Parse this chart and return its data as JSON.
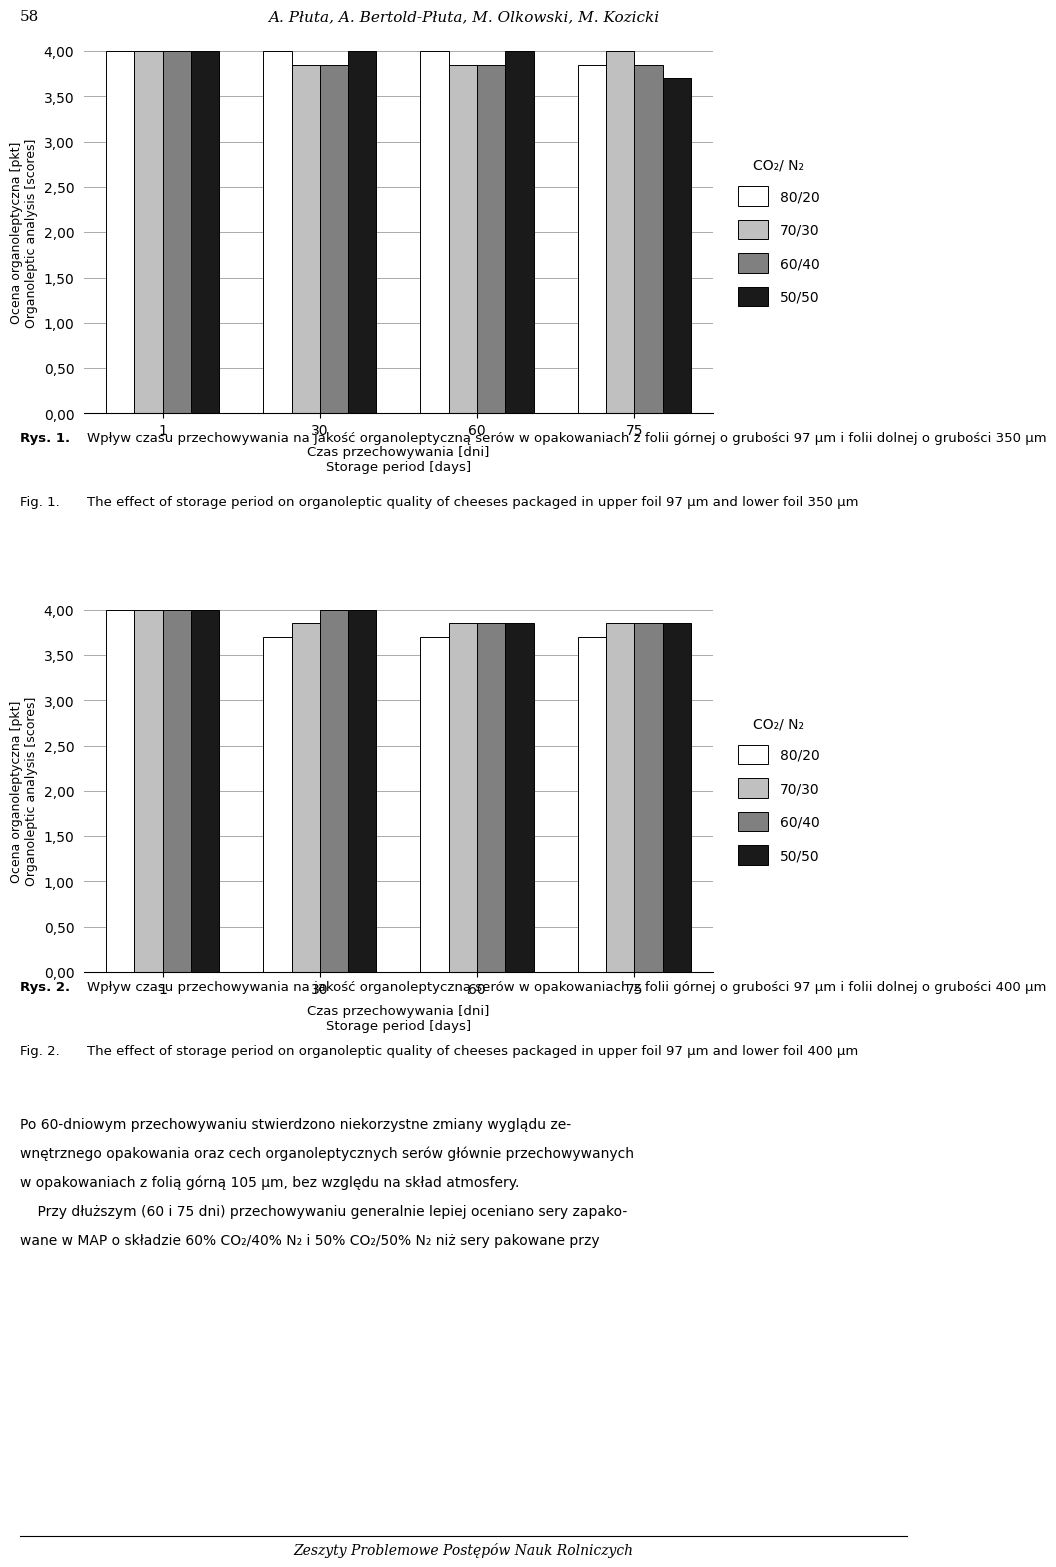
{
  "chart1": {
    "values": {
      "80/20": [
        4.0,
        4.0,
        4.0,
        3.85
      ],
      "70/30": [
        4.0,
        3.85,
        3.85,
        4.0
      ],
      "60/40": [
        4.0,
        3.85,
        3.85,
        3.85
      ],
      "50/50": [
        4.0,
        4.0,
        4.0,
        3.7
      ]
    }
  },
  "chart2": {
    "values": {
      "80/20": [
        4.0,
        3.7,
        3.7,
        3.7
      ],
      "70/30": [
        4.0,
        3.85,
        3.85,
        3.85
      ],
      "60/40": [
        4.0,
        4.0,
        3.85,
        3.85
      ],
      "50/50": [
        4.0,
        4.0,
        3.85,
        3.85
      ]
    }
  },
  "x_labels": [
    "1",
    "30",
    "60",
    "75"
  ],
  "xlabel_pl": "Czas przechowywania [dni]",
  "xlabel_en": "Storage period [days]",
  "ylabel_pl": "Ocena organoleptyczna [pkt]",
  "ylabel_en": "Organoleptic analysis [scores]",
  "ylim": [
    0.0,
    4.0
  ],
  "yticks": [
    0.0,
    0.5,
    1.0,
    1.5,
    2.0,
    2.5,
    3.0,
    3.5,
    4.0
  ],
  "legend_title": "CO₂/ N₂",
  "legend_labels": [
    "80/20",
    "70/30",
    "60/40",
    "50/50"
  ],
  "bar_colors": [
    "#ffffff",
    "#c0c0c0",
    "#808080",
    "#1a1a1a"
  ],
  "bar_edge_color": "#000000",
  "header_author": "A. Płuta, A. Bertold-Płuta, M. Olkowski, M. Kozicki",
  "header_page": "58",
  "footer_text": "Zeszyty Problemowe Postępów Nauk Rolniczych",
  "rys1_pl_bold": "Rys. 1.",
  "rys1_pl_text": "Wpływ czasu przechowywania na jakość organoleptyczną serów w opakowaniach z folii górnej o grubości 97 μm i folii dolnej o grubości 350 μm",
  "rys1_en_label": "Fig. 1.",
  "rys1_en_text": "The effect of storage period on organoleptic quality of cheeses packaged in upper foil 97 μm and lower foil 350 μm",
  "rys2_pl_bold": "Rys. 2.",
  "rys2_pl_text": "Wpływ czasu przechowywania na jakość organoleptyczną serów w opakowaniach z folii górnej o grubości 97 μm i folii dolnej o grubości 400 μm",
  "rys2_en_label": "Fig. 2.",
  "rys2_en_text": "The effect of storage period on organoleptic quality of cheeses packaged in upper foil 97 μm and lower foil 400 μm",
  "body_line1": "Po 60-dniowym przechowywaniu stwierdzono niekorzystne zmiany wyglądu ze-",
  "body_line2": "wnętrznego opakowania oraz cech organoleptycznych serów głównie przechowywanych",
  "body_line3": "w opakowaniach z folią górną 105 μm, bez względu na skład atmosfery.",
  "body_line4": "    Przy dłuższym (60 i 75 dni) przechowywaniu generalnie lepiej oceniano sery zapako-",
  "body_line5": "wane w MAP o składzie 60% CO₂/40% N₂ i 50% CO₂/50% N₂ niż sery pakowane przy"
}
